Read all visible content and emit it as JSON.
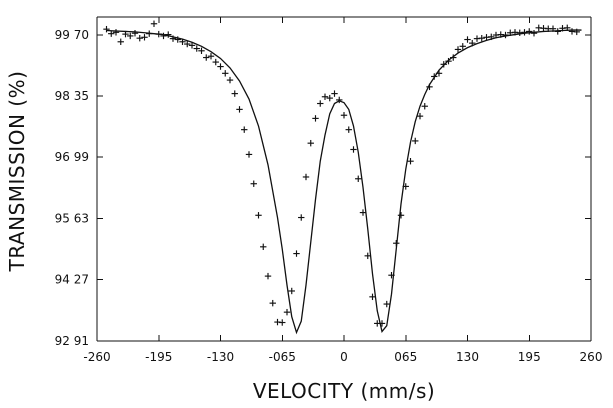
{
  "chart_data": {
    "type": "scatter",
    "xlabel": "VELOCITY (mm/s)",
    "ylabel": "TRANSMISSION (%)",
    "xlim": [
      -2.6,
      2.6
    ],
    "ylim": [
      92.91,
      100.1
    ],
    "x_ticks": [
      -2.6,
      -1.95,
      -1.3,
      -0.65,
      0,
      0.65,
      1.3,
      1.95,
      2.6
    ],
    "x_tick_labels": [
      "-260",
      "-195",
      "-130",
      "-065",
      "0",
      "065",
      "130",
      "195",
      "260"
    ],
    "y_ticks": [
      92.91,
      94.27,
      95.63,
      96.99,
      98.35,
      99.7
    ],
    "y_tick_labels": [
      "92 91",
      "94 27",
      "95 63",
      "96 99",
      "98 35",
      "99 70"
    ],
    "grid": false,
    "series": [
      {
        "kind": "measured",
        "marker": "plus",
        "x": [
          -2.5,
          -2.45,
          -2.4,
          -2.35,
          -2.3,
          -2.25,
          -2.2,
          -2.15,
          -2.1,
          -2.05,
          -2.0,
          -1.95,
          -1.9,
          -1.85,
          -1.8,
          -1.75,
          -1.7,
          -1.65,
          -1.6,
          -1.55,
          -1.5,
          -1.45,
          -1.4,
          -1.35,
          -1.3,
          -1.25,
          -1.2,
          -1.15,
          -1.1,
          -1.05,
          -1.0,
          -0.95,
          -0.9,
          -0.85,
          -0.8,
          -0.75,
          -0.7,
          -0.65,
          -0.6,
          -0.55,
          -0.5,
          -0.45,
          -0.4,
          -0.35,
          -0.3,
          -0.25,
          -0.2,
          -0.15,
          -0.1,
          -0.05,
          0.0,
          0.05,
          0.1,
          0.15,
          0.2,
          0.25,
          0.3,
          0.35,
          0.4,
          0.45,
          0.5,
          0.55,
          0.6,
          0.65,
          0.7,
          0.75,
          0.8,
          0.85,
          0.9,
          0.95,
          1.0,
          1.05,
          1.1,
          1.15,
          1.2,
          1.25,
          1.3,
          1.35,
          1.4,
          1.45,
          1.5,
          1.55,
          1.6,
          1.65,
          1.7,
          1.75,
          1.8,
          1.85,
          1.9,
          1.95,
          2.0,
          2.05,
          2.1,
          2.15,
          2.2,
          2.25,
          2.3,
          2.35,
          2.4,
          2.45
        ],
        "y": [
          99.83,
          99.73,
          99.76,
          99.55,
          99.72,
          99.68,
          99.74,
          99.63,
          99.65,
          99.73,
          99.95,
          99.72,
          99.68,
          99.71,
          99.62,
          99.6,
          99.55,
          99.5,
          99.47,
          99.4,
          99.35,
          99.2,
          99.23,
          99.1,
          99.0,
          98.85,
          98.7,
          98.4,
          98.05,
          97.6,
          97.05,
          96.4,
          95.7,
          95.0,
          94.35,
          93.75,
          93.33,
          93.32,
          93.55,
          94.02,
          94.85,
          95.65,
          96.55,
          97.3,
          97.85,
          98.18,
          98.33,
          98.3,
          98.4,
          98.26,
          97.92,
          97.6,
          97.16,
          96.51,
          95.76,
          94.8,
          93.89,
          93.3,
          93.3,
          93.73,
          94.37,
          95.08,
          95.7,
          96.34,
          96.9,
          97.35,
          97.9,
          98.12,
          98.55,
          98.78,
          98.85,
          99.05,
          99.12,
          99.2,
          99.38,
          99.45,
          99.6,
          99.52,
          99.62,
          99.63,
          99.65,
          99.66,
          99.7,
          99.71,
          99.7,
          99.75,
          99.76,
          99.75,
          99.76,
          99.78,
          99.74,
          99.86,
          99.85,
          99.84,
          99.84,
          99.78,
          99.85,
          99.86,
          99.78,
          99.77
        ]
      },
      {
        "kind": "fit",
        "x": [
          -2.5,
          -2.4,
          -2.3,
          -2.2,
          -2.1,
          -2.0,
          -1.9,
          -1.8,
          -1.7,
          -1.6,
          -1.5,
          -1.4,
          -1.3,
          -1.2,
          -1.1,
          -1.0,
          -0.9,
          -0.8,
          -0.7,
          -0.65,
          -0.6,
          -0.55,
          -0.5,
          -0.45,
          -0.4,
          -0.35,
          -0.3,
          -0.25,
          -0.2,
          -0.15,
          -0.1,
          -0.05,
          0.0,
          0.05,
          0.1,
          0.15,
          0.2,
          0.25,
          0.3,
          0.35,
          0.4,
          0.45,
          0.5,
          0.55,
          0.6,
          0.65,
          0.7,
          0.75,
          0.8,
          0.85,
          0.9,
          1.0,
          1.1,
          1.2,
          1.3,
          1.4,
          1.5,
          1.6,
          1.7,
          1.8,
          1.9,
          2.0,
          2.1,
          2.2,
          2.3,
          2.4,
          2.5
        ],
        "y": [
          99.8,
          99.79,
          99.78,
          99.77,
          99.75,
          99.73,
          99.71,
          99.66,
          99.61,
          99.54,
          99.45,
          99.33,
          99.18,
          98.97,
          98.68,
          98.28,
          97.68,
          96.82,
          95.65,
          94.95,
          94.15,
          93.45,
          93.1,
          93.35,
          94.15,
          95.1,
          96.05,
          96.9,
          97.48,
          97.95,
          98.18,
          98.24,
          98.2,
          98.05,
          97.68,
          97.1,
          96.32,
          95.4,
          94.4,
          93.58,
          93.12,
          93.25,
          93.95,
          94.95,
          95.95,
          96.72,
          97.32,
          97.78,
          98.12,
          98.38,
          98.6,
          98.92,
          99.14,
          99.3,
          99.42,
          99.51,
          99.58,
          99.64,
          99.68,
          99.71,
          99.74,
          99.76,
          99.78,
          99.79,
          99.8,
          99.81,
          99.81
        ]
      }
    ]
  }
}
